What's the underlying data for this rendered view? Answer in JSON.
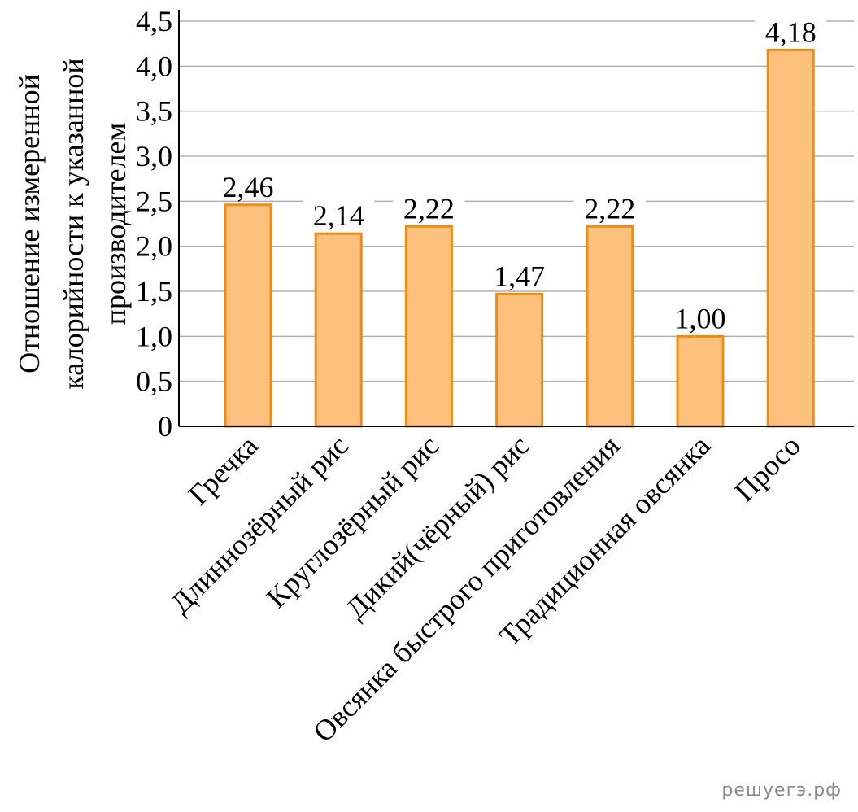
{
  "chart_data": {
    "type": "bar",
    "ylabel": [
      "Отношение измеренной",
      "калорийности к указанной",
      "производителем"
    ],
    "ylim": [
      0,
      4.5
    ],
    "yticks": [
      "0",
      "0,5",
      "1,0",
      "1,5",
      "2,0",
      "2,5",
      "3,0",
      "3,5",
      "4,0",
      "4,5"
    ],
    "categories": [
      "Гречка",
      "Длиннозёрный рис",
      "Круглозёрный рис",
      "Дикий(чёрный) рис",
      "Овсянка быстрого приготовления",
      "Традиционная овсянка",
      "Просо"
    ],
    "values": [
      2.46,
      2.14,
      2.22,
      1.47,
      2.22,
      1.0,
      4.18
    ],
    "value_labels": [
      "2,46",
      "2,14",
      "2,22",
      "1,47",
      "2,22",
      "1,00",
      "4,18"
    ],
    "grid": true,
    "colors": {
      "bar_fill": "#fdc07d",
      "bar_stroke": "#f08c12",
      "grid": "#b0b0b0",
      "axis": "#000000"
    }
  },
  "watermark": "решуегэ.рф"
}
